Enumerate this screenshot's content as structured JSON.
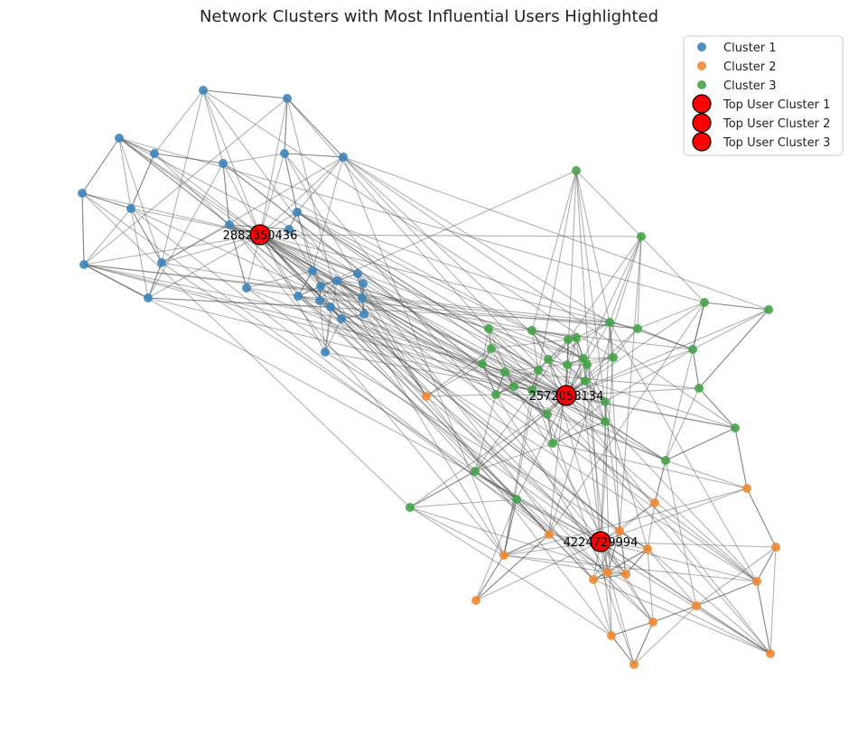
{
  "chart_data": {
    "type": "scatter",
    "title": "Network Clusters with Most Influential Users Highlighted",
    "legend_position": "top-right",
    "colors": {
      "cluster_1": "#3d85bd",
      "cluster_2": "#f28a30",
      "cluster_3": "#44a548",
      "top_user": "#ff0000",
      "edge": "#555555"
    },
    "legend": {
      "entries": [
        {
          "label": "Cluster 1",
          "kind": "cluster",
          "color": "#3d85bd"
        },
        {
          "label": "Cluster 2",
          "kind": "cluster",
          "color": "#f28a30"
        },
        {
          "label": "Cluster 3",
          "kind": "cluster",
          "color": "#44a548"
        },
        {
          "label": "Top User Cluster 1",
          "kind": "top",
          "color": "#ff0000"
        },
        {
          "label": "Top User Cluster 2",
          "kind": "top",
          "color": "#ff0000"
        },
        {
          "label": "Top User Cluster 3",
          "kind": "top",
          "color": "#ff0000"
        }
      ]
    },
    "top_users": [
      {
        "label": "2882350436",
        "cluster": 1,
        "x": 288,
        "y": 260
      },
      {
        "label": "4224729994",
        "cluster": 2,
        "x": 665,
        "y": 600
      },
      {
        "label": "2572058134",
        "cluster": 3,
        "x": 627,
        "y": 438
      }
    ],
    "clusters": [
      {
        "name": "Cluster 1",
        "points": [
          [
            225,
            100
          ],
          [
            318,
            109
          ],
          [
            132,
            153
          ],
          [
            171,
            170
          ],
          [
            247,
            181
          ],
          [
            315,
            170
          ],
          [
            380,
            174
          ],
          [
            91,
            214
          ],
          [
            145,
            231
          ],
          [
            254,
            249
          ],
          [
            329,
            235
          ],
          [
            320,
            254
          ],
          [
            93,
            293
          ],
          [
            179,
            291
          ],
          [
            164,
            330
          ],
          [
            273,
            319
          ],
          [
            346,
            300
          ],
          [
            355,
            317
          ],
          [
            373,
            311
          ],
          [
            396,
            303
          ],
          [
            402,
            314
          ],
          [
            401,
            330
          ],
          [
            330,
            328
          ],
          [
            354,
            333
          ],
          [
            366,
            340
          ],
          [
            378,
            353
          ],
          [
            403,
            348
          ],
          [
            360,
            390
          ]
        ]
      },
      {
        "name": "Cluster 2",
        "points": [
          [
            472,
            439
          ],
          [
            725,
            557
          ],
          [
            827,
            541
          ],
          [
            686,
            588
          ],
          [
            608,
            592
          ],
          [
            717,
            608
          ],
          [
            859,
            606
          ],
          [
            558,
            615
          ],
          [
            673,
            634
          ],
          [
            693,
            636
          ],
          [
            657,
            642
          ],
          [
            838,
            644
          ],
          [
            527,
            665
          ],
          [
            771,
            671
          ],
          [
            723,
            689
          ],
          [
            677,
            704
          ],
          [
            853,
            724
          ],
          [
            702,
            736
          ]
        ]
      },
      {
        "name": "Cluster 3",
        "points": [
          [
            638,
            189
          ],
          [
            710,
            262
          ],
          [
            780,
            335
          ],
          [
            851,
            343
          ],
          [
            541,
            364
          ],
          [
            589,
            366
          ],
          [
            675,
            357
          ],
          [
            706,
            364
          ],
          [
            638,
            374
          ],
          [
            629,
            376
          ],
          [
            544,
            386
          ],
          [
            767,
            387
          ],
          [
            607,
            398
          ],
          [
            646,
            397
          ],
          [
            679,
            396
          ],
          [
            534,
            403
          ],
          [
            559,
            412
          ],
          [
            596,
            410
          ],
          [
            628,
            404
          ],
          [
            650,
            404
          ],
          [
            569,
            428
          ],
          [
            589,
            432
          ],
          [
            648,
            422
          ],
          [
            549,
            437
          ],
          [
            670,
            445
          ],
          [
            606,
            459
          ],
          [
            670,
            467
          ],
          [
            774,
            430
          ],
          [
            814,
            474
          ],
          [
            612,
            491
          ],
          [
            737,
            510
          ],
          [
            526,
            522
          ],
          [
            572,
            553
          ],
          [
            454,
            562
          ]
        ]
      }
    ]
  }
}
